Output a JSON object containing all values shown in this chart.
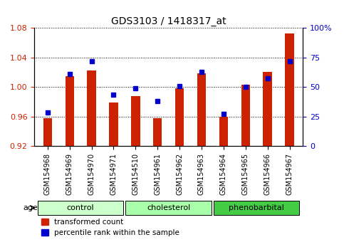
{
  "title": "GDS3103 / 1418317_at",
  "samples": [
    "GSM154968",
    "GSM154969",
    "GSM154970",
    "GSM154971",
    "GSM154510",
    "GSM154961",
    "GSM154962",
    "GSM154963",
    "GSM154964",
    "GSM154965",
    "GSM154966",
    "GSM154967"
  ],
  "red_values": [
    0.958,
    1.015,
    1.022,
    0.979,
    0.988,
    0.958,
    0.998,
    1.018,
    0.96,
    1.003,
    1.02,
    1.072
  ],
  "blue_values": [
    0.285,
    0.61,
    0.72,
    0.435,
    0.49,
    0.38,
    0.505,
    0.625,
    0.27,
    0.5,
    0.57,
    0.715
  ],
  "groups": [
    {
      "label": "control",
      "start": 0,
      "end": 3,
      "color": "#ccffcc"
    },
    {
      "label": "cholesterol",
      "start": 4,
      "end": 7,
      "color": "#aaffaa"
    },
    {
      "label": "phenobarbital",
      "start": 8,
      "end": 11,
      "color": "#44cc44"
    }
  ],
  "ylim_left": [
    0.92,
    1.08
  ],
  "ylim_right": [
    0.0,
    1.0
  ],
  "yticks_left": [
    0.92,
    0.96,
    1.0,
    1.04,
    1.08
  ],
  "yticks_right": [
    0.0,
    0.25,
    0.5,
    0.75,
    1.0
  ],
  "ytick_labels_right": [
    "0",
    "25",
    "50",
    "75",
    "100%"
  ],
  "red_color": "#cc2200",
  "blue_color": "#0000cc",
  "baseline": 0.92,
  "bar_width": 0.4,
  "dot_size": 40
}
